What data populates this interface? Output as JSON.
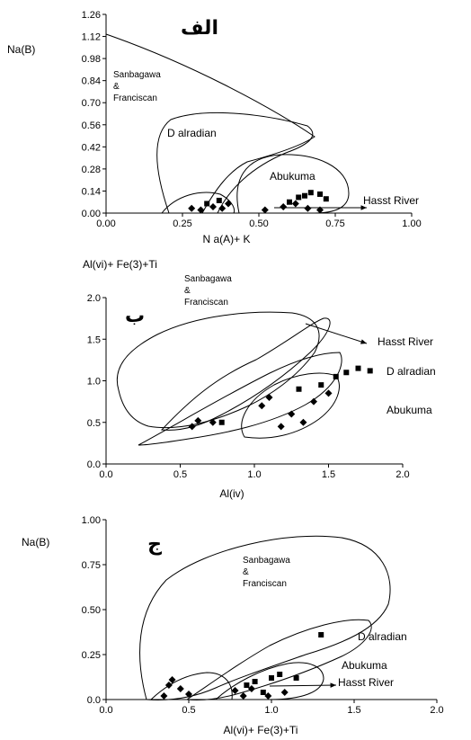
{
  "chart_data": [
    {
      "type": "scatter",
      "panel_label": "الف",
      "xlabel": "N a(A)+ K",
      "ylabel": "Na(B)",
      "xlim": [
        0,
        1
      ],
      "ylim": [
        0,
        1.26
      ],
      "x_ticks": [
        "0.00",
        "0.25",
        "0.50",
        "0.75",
        "1.00"
      ],
      "y_ticks": [
        "0.00",
        "0.14",
        "0.28",
        "0.42",
        "0.56",
        "0.70",
        "0.84",
        "0.98",
        "1.12",
        "1.26"
      ],
      "regions": [
        {
          "name": "Sanbagawa\n&\nFranciscan"
        },
        {
          "name": "D alradian"
        },
        {
          "name": "Abukuma"
        },
        {
          "name": "Hasst River"
        }
      ],
      "points": {
        "squares": [
          [
            0.33,
            0.06
          ],
          [
            0.37,
            0.08
          ],
          [
            0.63,
            0.1
          ],
          [
            0.65,
            0.11
          ],
          [
            0.67,
            0.13
          ],
          [
            0.7,
            0.12
          ],
          [
            0.72,
            0.09
          ],
          [
            0.6,
            0.07
          ]
        ],
        "diamonds": [
          [
            0.28,
            0.03
          ],
          [
            0.31,
            0.02
          ],
          [
            0.35,
            0.04
          ],
          [
            0.38,
            0.03
          ],
          [
            0.4,
            0.06
          ],
          [
            0.52,
            0.02
          ],
          [
            0.58,
            0.04
          ],
          [
            0.66,
            0.03
          ],
          [
            0.7,
            0.02
          ],
          [
            0.62,
            0.06
          ]
        ]
      }
    },
    {
      "type": "scatter",
      "panel_label": "ب",
      "xlabel": "Al(iv)",
      "ylabel": "Al(vi)+ Fe(3)+Ti",
      "xlim": [
        0,
        2
      ],
      "ylim": [
        0,
        2
      ],
      "x_ticks": [
        "0.0",
        "0.5",
        "1.0",
        "1.5",
        "2.0"
      ],
      "y_ticks": [
        "0.0",
        "0.5",
        "1.0",
        "1.5",
        "2.0"
      ],
      "regions": [
        {
          "name": "Sanbagawa\n&\nFranciscan"
        },
        {
          "name": "Hasst River"
        },
        {
          "name": "D alradian"
        },
        {
          "name": "Abukuma"
        }
      ],
      "points": {
        "squares": [
          [
            0.78,
            0.5
          ],
          [
            1.3,
            0.9
          ],
          [
            1.45,
            0.95
          ],
          [
            1.55,
            1.05
          ],
          [
            1.62,
            1.1
          ],
          [
            1.7,
            1.15
          ],
          [
            1.78,
            1.12
          ]
        ],
        "diamonds": [
          [
            0.58,
            0.45
          ],
          [
            0.62,
            0.52
          ],
          [
            0.72,
            0.5
          ],
          [
            1.05,
            0.7
          ],
          [
            1.1,
            0.8
          ],
          [
            1.18,
            0.45
          ],
          [
            1.25,
            0.6
          ],
          [
            1.33,
            0.5
          ],
          [
            1.4,
            0.75
          ],
          [
            1.5,
            0.85
          ]
        ]
      }
    },
    {
      "type": "scatter",
      "panel_label": "ج",
      "xlabel": "Al(vi)+ Fe(3)+Ti",
      "ylabel": "Na(B)",
      "xlim": [
        0,
        2
      ],
      "ylim": [
        0,
        1
      ],
      "x_ticks": [
        "0.0",
        "0.5",
        "1.0",
        "1.5",
        "2.0"
      ],
      "y_ticks": [
        "0.0",
        "0.25",
        "0.50",
        "0.75",
        "1.00"
      ],
      "regions": [
        {
          "name": "Sanbagawa\n&\nFranciscan"
        },
        {
          "name": "D alradian"
        },
        {
          "name": "Abukuma"
        },
        {
          "name": "Hasst River"
        }
      ],
      "points": {
        "squares": [
          [
            0.85,
            0.08
          ],
          [
            0.9,
            0.1
          ],
          [
            1.0,
            0.12
          ],
          [
            1.05,
            0.14
          ],
          [
            1.15,
            0.12
          ],
          [
            1.3,
            0.36
          ],
          [
            0.95,
            0.04
          ]
        ],
        "diamonds": [
          [
            0.35,
            0.02
          ],
          [
            0.38,
            0.08
          ],
          [
            0.4,
            0.11
          ],
          [
            0.45,
            0.06
          ],
          [
            0.5,
            0.03
          ],
          [
            0.78,
            0.05
          ],
          [
            0.83,
            0.02
          ],
          [
            0.88,
            0.06
          ],
          [
            0.98,
            0.02
          ],
          [
            1.08,
            0.04
          ]
        ]
      }
    }
  ]
}
